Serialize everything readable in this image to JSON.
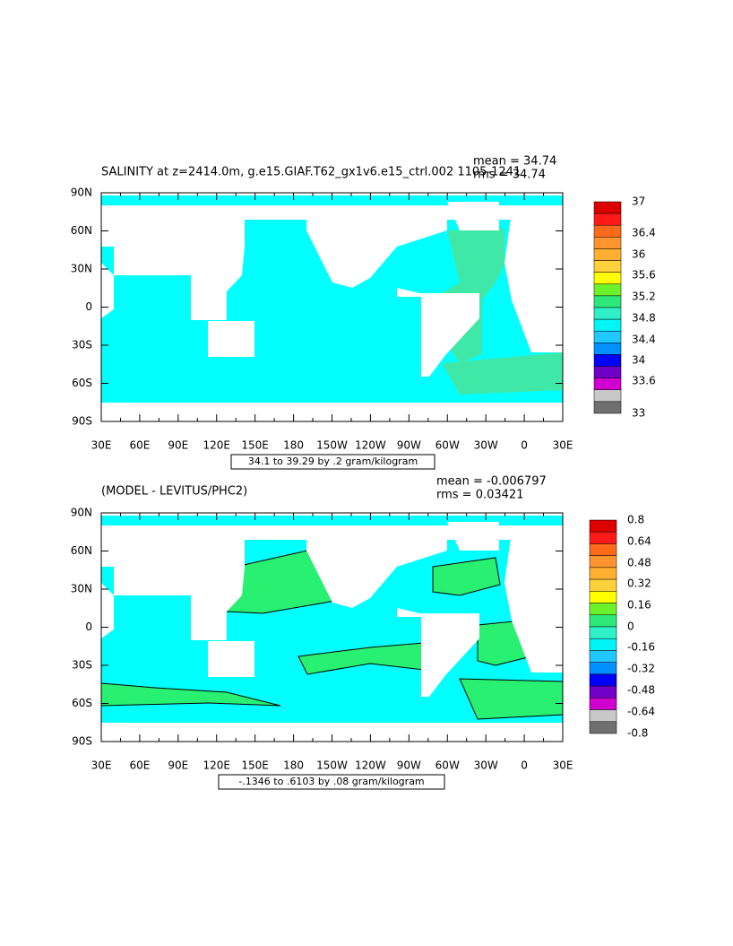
{
  "panels": [
    {
      "title": "SALINITY at z=2414.0m, g.e15.GIAF.T62_gx1v6.e15_ctrl.002 1105-1241",
      "mean": "mean = 34.74",
      "rms": "rms = 34.74",
      "lat_labels": [
        "90N",
        "60N",
        "30N",
        "0",
        "30S",
        "60S",
        "90S"
      ],
      "lon_labels": [
        "30E",
        "60E",
        "90E",
        "120E",
        "150E",
        "180",
        "150W",
        "120W",
        "90W",
        "60W",
        "30W",
        "0",
        "30E"
      ],
      "colorbar_labels": [
        "37",
        "36.4",
        "36",
        "35.6",
        "35.2",
        "34.8",
        "34.4",
        "34",
        "33.6",
        "33"
      ],
      "contour_info": "34.1 to 39.29 by .2 gram/kilogram"
    },
    {
      "title": "(MODEL - LEVITUS/PHC2)",
      "mean": "mean = -0.006797",
      "rms": "rms = 0.03421",
      "lat_labels": [
        "90N",
        "60N",
        "30N",
        "0",
        "30S",
        "60S",
        "90S"
      ],
      "lon_labels": [
        "30E",
        "60E",
        "90E",
        "120E",
        "150E",
        "180",
        "150W",
        "120W",
        "90W",
        "60W",
        "30W",
        "0",
        "30E"
      ],
      "colorbar_labels": [
        "0.8",
        "0.64",
        "0.48",
        "0.32",
        "0.16",
        "0",
        "-0.16",
        "-0.32",
        "-0.48",
        "-0.64",
        "-0.8"
      ],
      "contour_info": "-.1346 to .6103 by .08 gram/kilogram"
    }
  ]
}
